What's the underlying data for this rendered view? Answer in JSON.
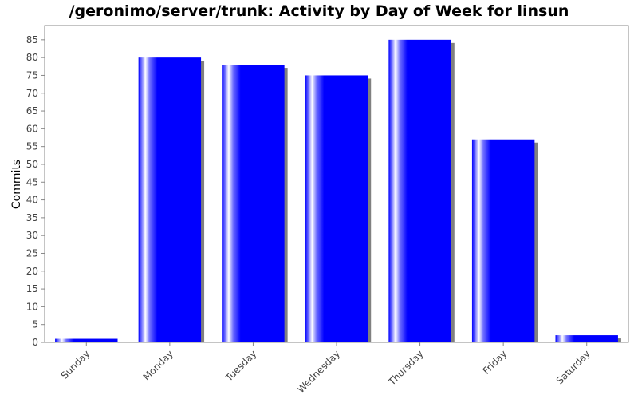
{
  "chart_data": {
    "type": "bar",
    "title": "/geronimo/server/trunk: Activity by Day of Week for linsun",
    "xlabel": "",
    "ylabel": "Commits",
    "categories": [
      "Sunday",
      "Monday",
      "Tuesday",
      "Wednesday",
      "Thursday",
      "Friday",
      "Saturday"
    ],
    "values": [
      1,
      80,
      78,
      75,
      85,
      57,
      2
    ],
    "ylim": [
      0,
      89
    ],
    "yticks": [
      0,
      5,
      10,
      15,
      20,
      25,
      30,
      35,
      40,
      45,
      50,
      55,
      60,
      65,
      70,
      75,
      80,
      85
    ],
    "grid": false,
    "legend": "none",
    "colors": {
      "bar": "#0000ff",
      "bar_highlight": "#ffffff",
      "shadow": "#808080",
      "axis": "#888888"
    }
  }
}
